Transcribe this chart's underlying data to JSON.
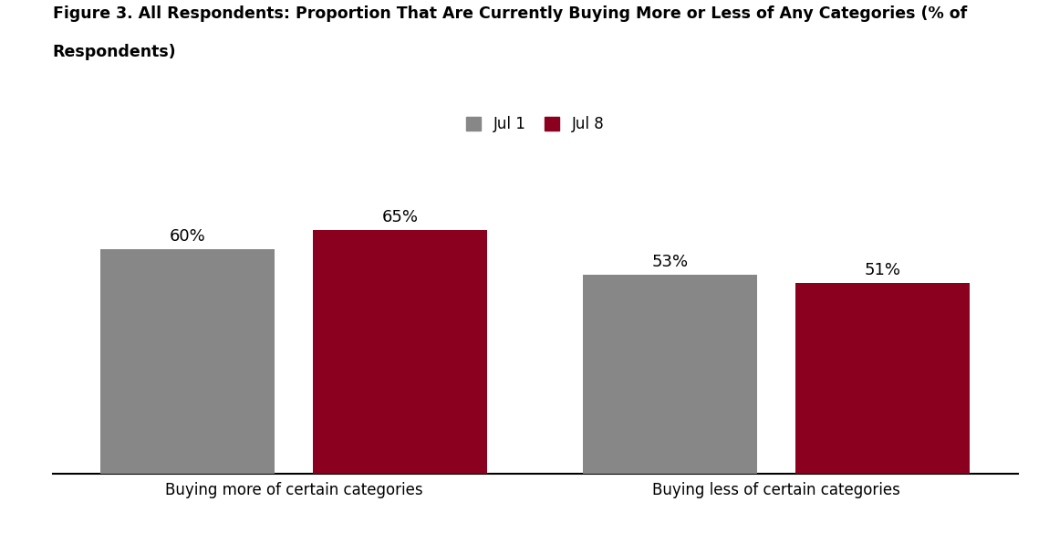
{
  "title_line1": "Figure 3. All Respondents: Proportion That Are Currently Buying More or Less of Any Categories (% of",
  "title_line2": "Respondents)",
  "categories": [
    "Buying more of certain categories",
    "Buying less of certain categories"
  ],
  "series": [
    {
      "label": "Jul 1",
      "color": "#878787",
      "values": [
        60,
        53
      ]
    },
    {
      "label": "Jul 8",
      "color": "#8B001E",
      "values": [
        65,
        51
      ]
    }
  ],
  "bar_width": 0.18,
  "group_positions": [
    0.25,
    0.75
  ],
  "ylim": [
    0,
    80
  ],
  "background_color": "#ffffff",
  "title_fontsize": 12.5,
  "label_fontsize": 12,
  "value_fontsize": 13,
  "legend_fontsize": 12,
  "bar_gap": 0.04
}
